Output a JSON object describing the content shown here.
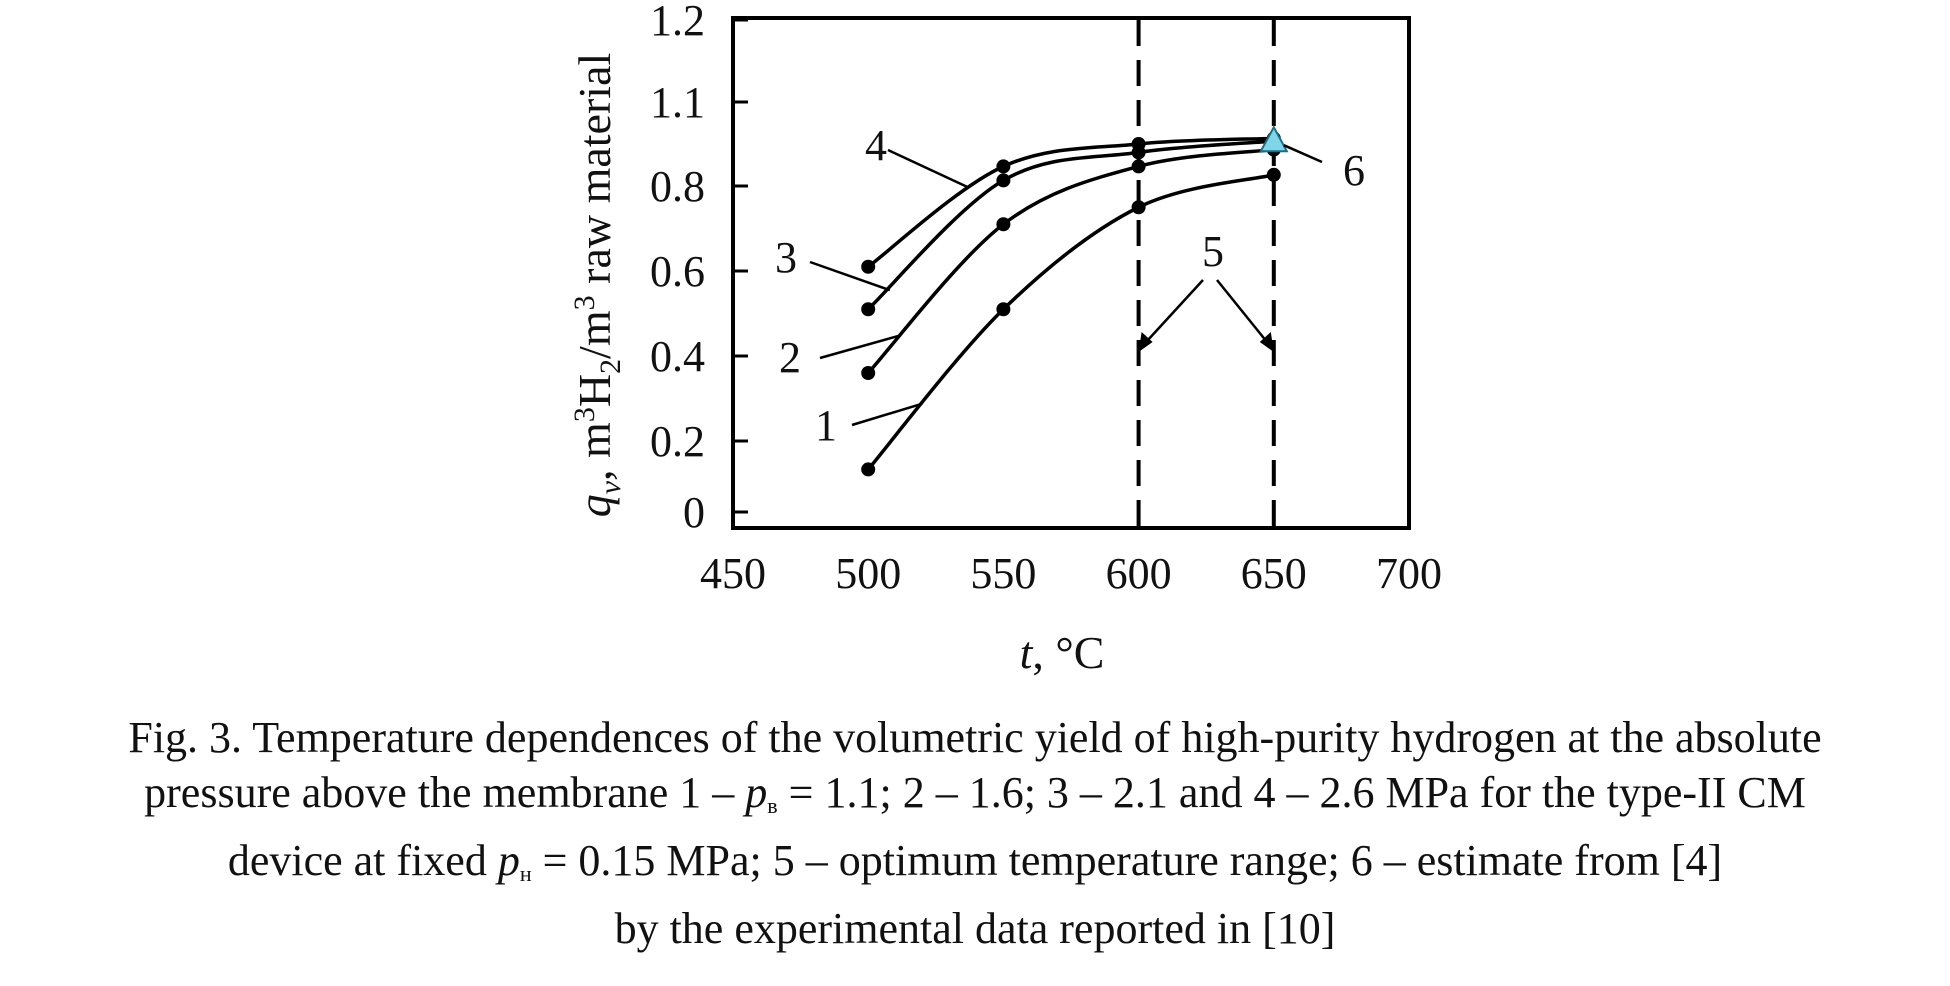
{
  "chart_data": {
    "type": "line",
    "xlabel": "t, °C",
    "ylabel": "q_v, m3H2/m3 raw material",
    "xlim": [
      450,
      700
    ],
    "ylim": [
      0,
      1.2
    ],
    "x_ticks": [
      "450",
      "500",
      "550",
      "600",
      "650",
      "700"
    ],
    "y_ticks": [
      "1.2",
      "1.1",
      "0.8",
      "0.6",
      "0.4",
      "0.2",
      "0"
    ],
    "x": [
      500,
      550,
      600,
      650
    ],
    "series": [
      {
        "name": "1",
        "values": [
          0.12,
          0.51,
          0.75,
          0.84
        ],
        "color": "#000000"
      },
      {
        "name": "2",
        "values": [
          0.36,
          0.71,
          0.87,
          0.93
        ],
        "color": "#000000"
      },
      {
        "name": "3",
        "values": [
          0.51,
          0.82,
          0.92,
          0.96
        ],
        "color": "#000000"
      },
      {
        "name": "4",
        "values": [
          0.61,
          0.87,
          0.95,
          0.97
        ],
        "color": "#000000"
      }
    ],
    "markers": [
      {
        "name": "6",
        "x": 650,
        "y": 0.96,
        "shape": "triangle",
        "color": "#7fd6e8"
      }
    ],
    "vlines": [
      {
        "x": 600,
        "style": "dashed"
      },
      {
        "x": 650,
        "style": "dashed"
      }
    ],
    "annotations": [
      {
        "text": "1",
        "target": "series 1"
      },
      {
        "text": "2",
        "target": "series 2"
      },
      {
        "text": "3",
        "target": "series 3"
      },
      {
        "text": "4",
        "target": "series 4"
      },
      {
        "text": "5",
        "target": "dashed lines"
      },
      {
        "text": "6",
        "target": "triangle marker"
      }
    ],
    "grid": false,
    "legend": "none"
  },
  "caption": {
    "line1": "Fig. 3. Temperature dependences of the volumetric yield of high-purity hydrogen at the absolute",
    "line2_a": "pressure above the membrane 1 – ",
    "line2_p": "p",
    "line2_sub": "в",
    "line2_b": " = 1.1; 2 – 1.6; 3 – 2.1 and 4 – 2.6 MPa for the type-II CM",
    "line3_a": "device at fixed ",
    "line3_p": "p",
    "line3_sub": "н",
    "line3_b": " = 0.15 MPa; 5 – optimum temperature range; 6 – estimate from [4]",
    "line4": "by the experimental data reported in [10]"
  }
}
